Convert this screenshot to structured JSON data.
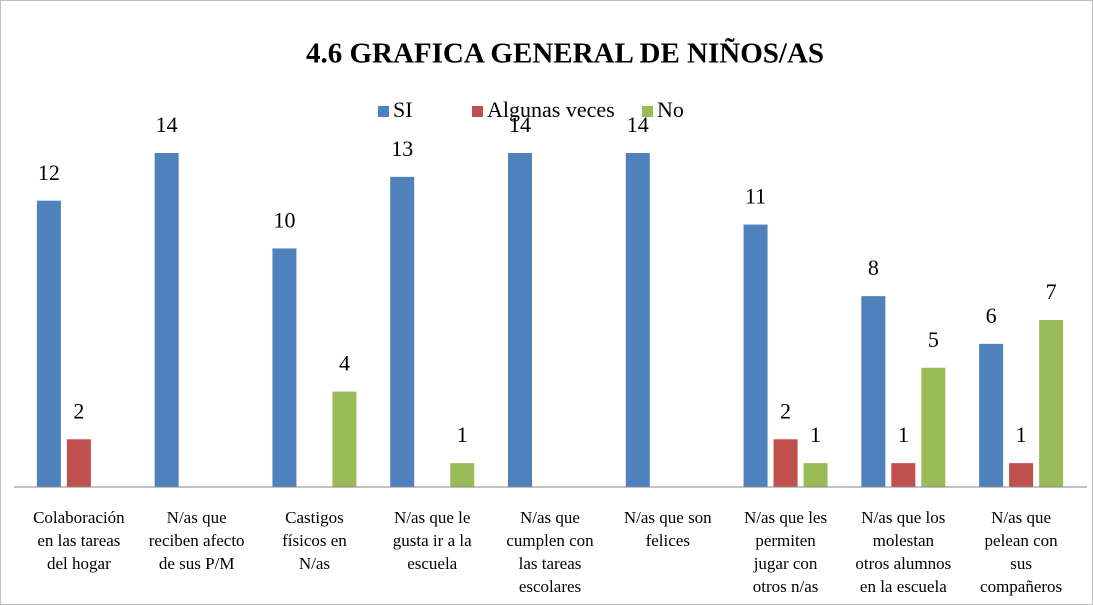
{
  "chart_data": {
    "type": "bar",
    "title": "4.6 GRAFICA GENERAL DE NIÑOS/AS",
    "categories": [
      [
        "Colaboración",
        "en las tareas",
        "del hogar"
      ],
      [
        "N/as que",
        "reciben afecto",
        "de sus P/M"
      ],
      [
        "Castigos",
        "físicos en",
        "N/as"
      ],
      [
        "N/as que le",
        "gusta ir a la",
        "escuela"
      ],
      [
        "N/as que",
        "cumplen con",
        "las tareas",
        "escolares"
      ],
      [
        "N/as que son",
        "felices"
      ],
      [
        "N/as que les",
        "permiten",
        "jugar con",
        "otros n/as"
      ],
      [
        "N/as que los",
        "molestan",
        "otros alumnos",
        "en la escuela"
      ],
      [
        "N/as que",
        "pelean con",
        "sus",
        "compañeros"
      ]
    ],
    "series": [
      {
        "name": "SI",
        "color": "#4f81bd",
        "values": [
          12,
          14,
          10,
          13,
          14,
          14,
          11,
          8,
          6
        ]
      },
      {
        "name": "Algunas veces",
        "color": "#c0504d",
        "values": [
          2,
          null,
          null,
          null,
          null,
          null,
          2,
          1,
          1
        ]
      },
      {
        "name": "No",
        "color": "#9bbb59",
        "values": [
          null,
          null,
          4,
          1,
          null,
          null,
          1,
          5,
          7
        ]
      }
    ],
    "ylim": [
      0,
      14
    ]
  }
}
